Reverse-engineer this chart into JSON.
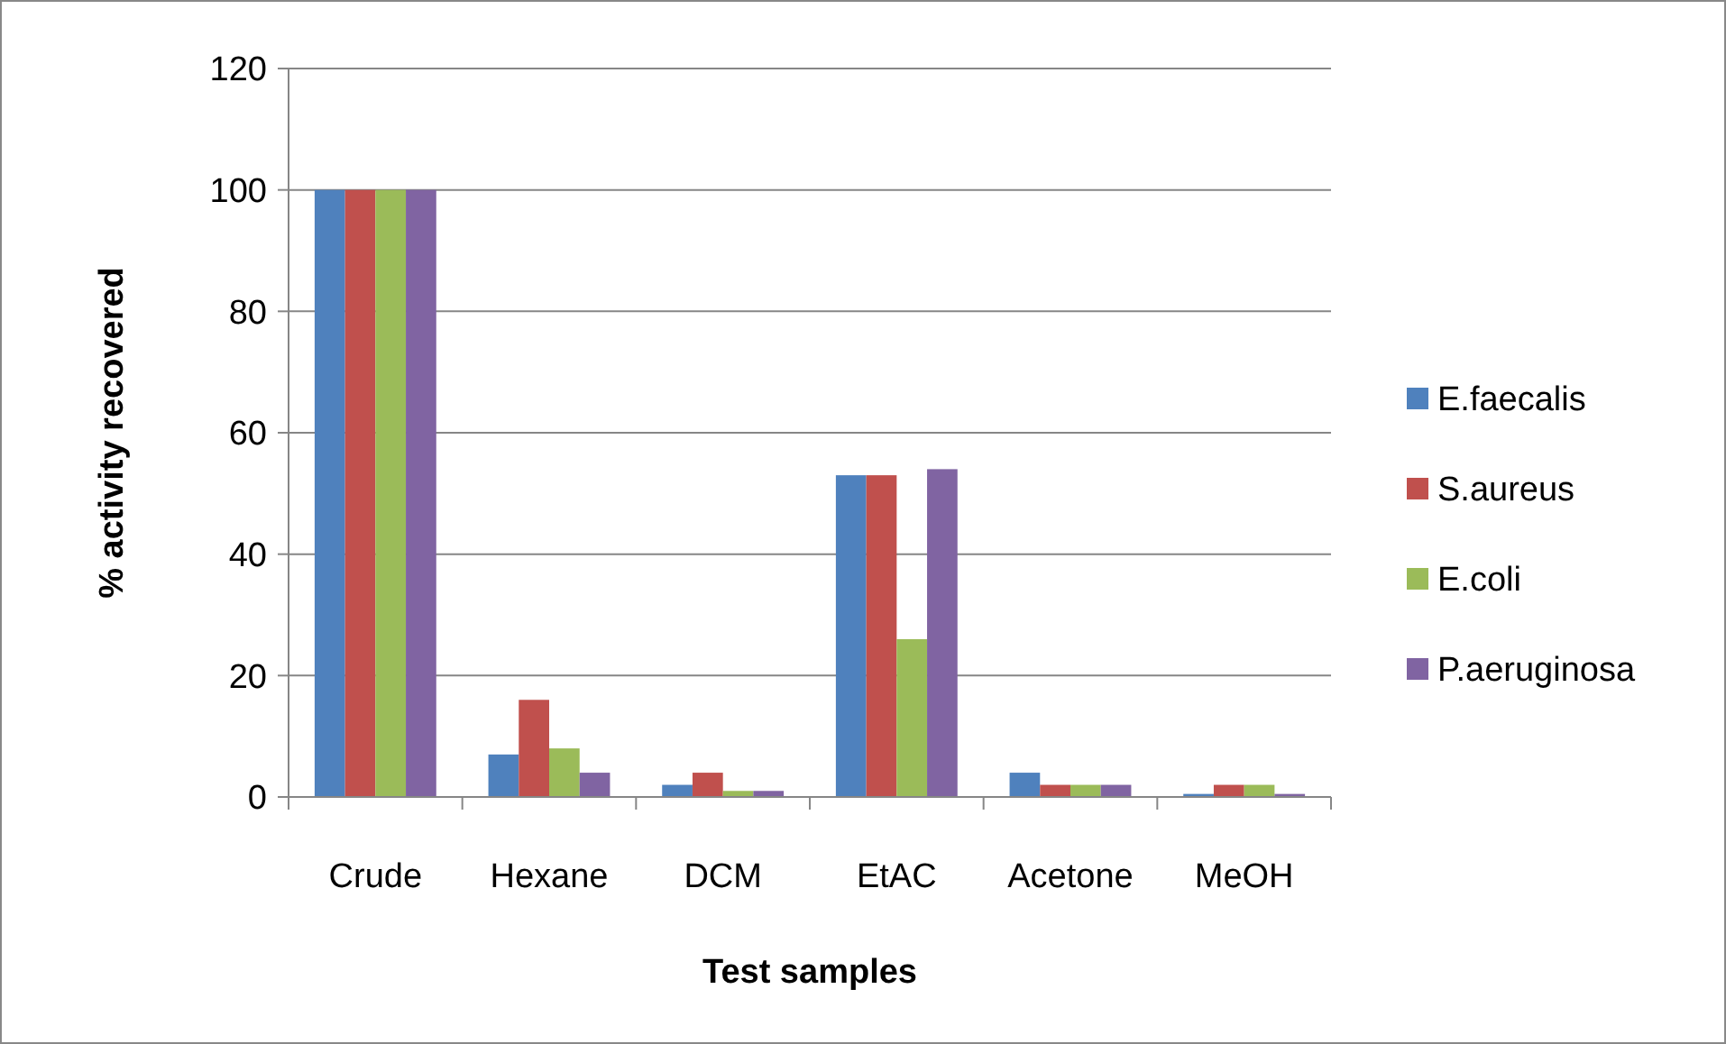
{
  "chart_data": {
    "type": "bar",
    "xlabel": "Test samples",
    "ylabel": "% activity recovered",
    "categories": [
      "Crude",
      "Hexane",
      "DCM",
      "EtAC",
      "Acetone",
      "MeOH"
    ],
    "series": [
      {
        "name": "E.faecalis",
        "color": "#4f81bd",
        "values": [
          100,
          7,
          2,
          53,
          4,
          0.5
        ]
      },
      {
        "name": "S.aureus",
        "color": "#c0504d",
        "values": [
          100,
          16,
          4,
          53,
          2,
          2
        ]
      },
      {
        "name": "E.coli",
        "color": "#9bbb59",
        "values": [
          100,
          8,
          1,
          26,
          2,
          2
        ]
      },
      {
        "name": "P.aeruginosa",
        "color": "#8064a2",
        "values": [
          100,
          4,
          1,
          54,
          2,
          0.5
        ]
      }
    ],
    "ylim": [
      0,
      120
    ],
    "yticks": [
      0,
      20,
      40,
      60,
      80,
      100,
      120
    ],
    "grid": "y",
    "legend": "right"
  }
}
